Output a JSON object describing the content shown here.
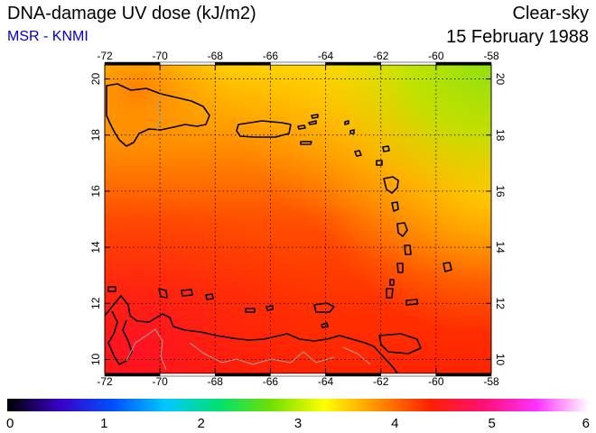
{
  "header": {
    "title": "DNA-damage UV dose (kJ/m2)",
    "source": "MSR - KNMI",
    "condition": "Clear-sky",
    "date": "15 February 1988"
  },
  "map": {
    "lon_range": [
      -72,
      -58
    ],
    "lat_range": [
      9.5,
      20.5
    ],
    "lon_ticks": [
      -72,
      -70,
      -68,
      -66,
      -64,
      -62,
      -60,
      -58
    ],
    "lat_ticks": [
      10,
      12,
      14,
      16,
      18,
      20
    ],
    "gridlines": true,
    "colors": {
      "coast": "#000000",
      "border": "#a0a0a0",
      "grid": "#000000"
    }
  },
  "colorbar": {
    "min": 0,
    "max": 6,
    "ticks": [
      0,
      1,
      2,
      3,
      4,
      5,
      6
    ],
    "colors": [
      "#000000",
      "#3a00c8",
      "#0050ff",
      "#00c8ff",
      "#00e070",
      "#70e000",
      "#ffff00",
      "#ff9000",
      "#ff2000",
      "#ff1070",
      "#ff30ff",
      "#ffffff"
    ]
  }
}
